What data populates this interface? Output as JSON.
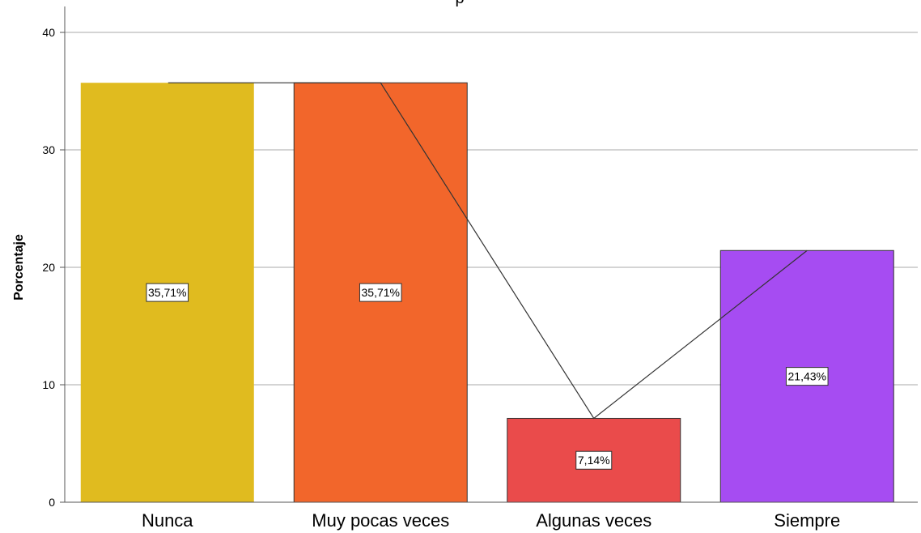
{
  "chart_data": {
    "type": "bar",
    "title": "p",
    "ylabel": "Porcentaje",
    "xlabel": "",
    "ylim": [
      0,
      42
    ],
    "yticks": [
      0,
      10,
      20,
      30,
      40
    ],
    "grid": true,
    "categories": [
      "Nunca",
      "Muy pocas veces",
      "Algunas veces",
      "Siempre"
    ],
    "values": [
      35.71,
      35.71,
      7.14,
      21.43
    ],
    "data_labels": [
      "35,71%",
      "35,71%",
      "7,14%",
      "21,43%"
    ],
    "colors": [
      "#e0bb1f",
      "#f2662b",
      "#ea4b4b",
      "#a64cf2"
    ],
    "overlay_line": {
      "type": "line",
      "values": [
        35.71,
        35.71,
        7.14,
        21.43
      ],
      "color": "#333333"
    }
  }
}
